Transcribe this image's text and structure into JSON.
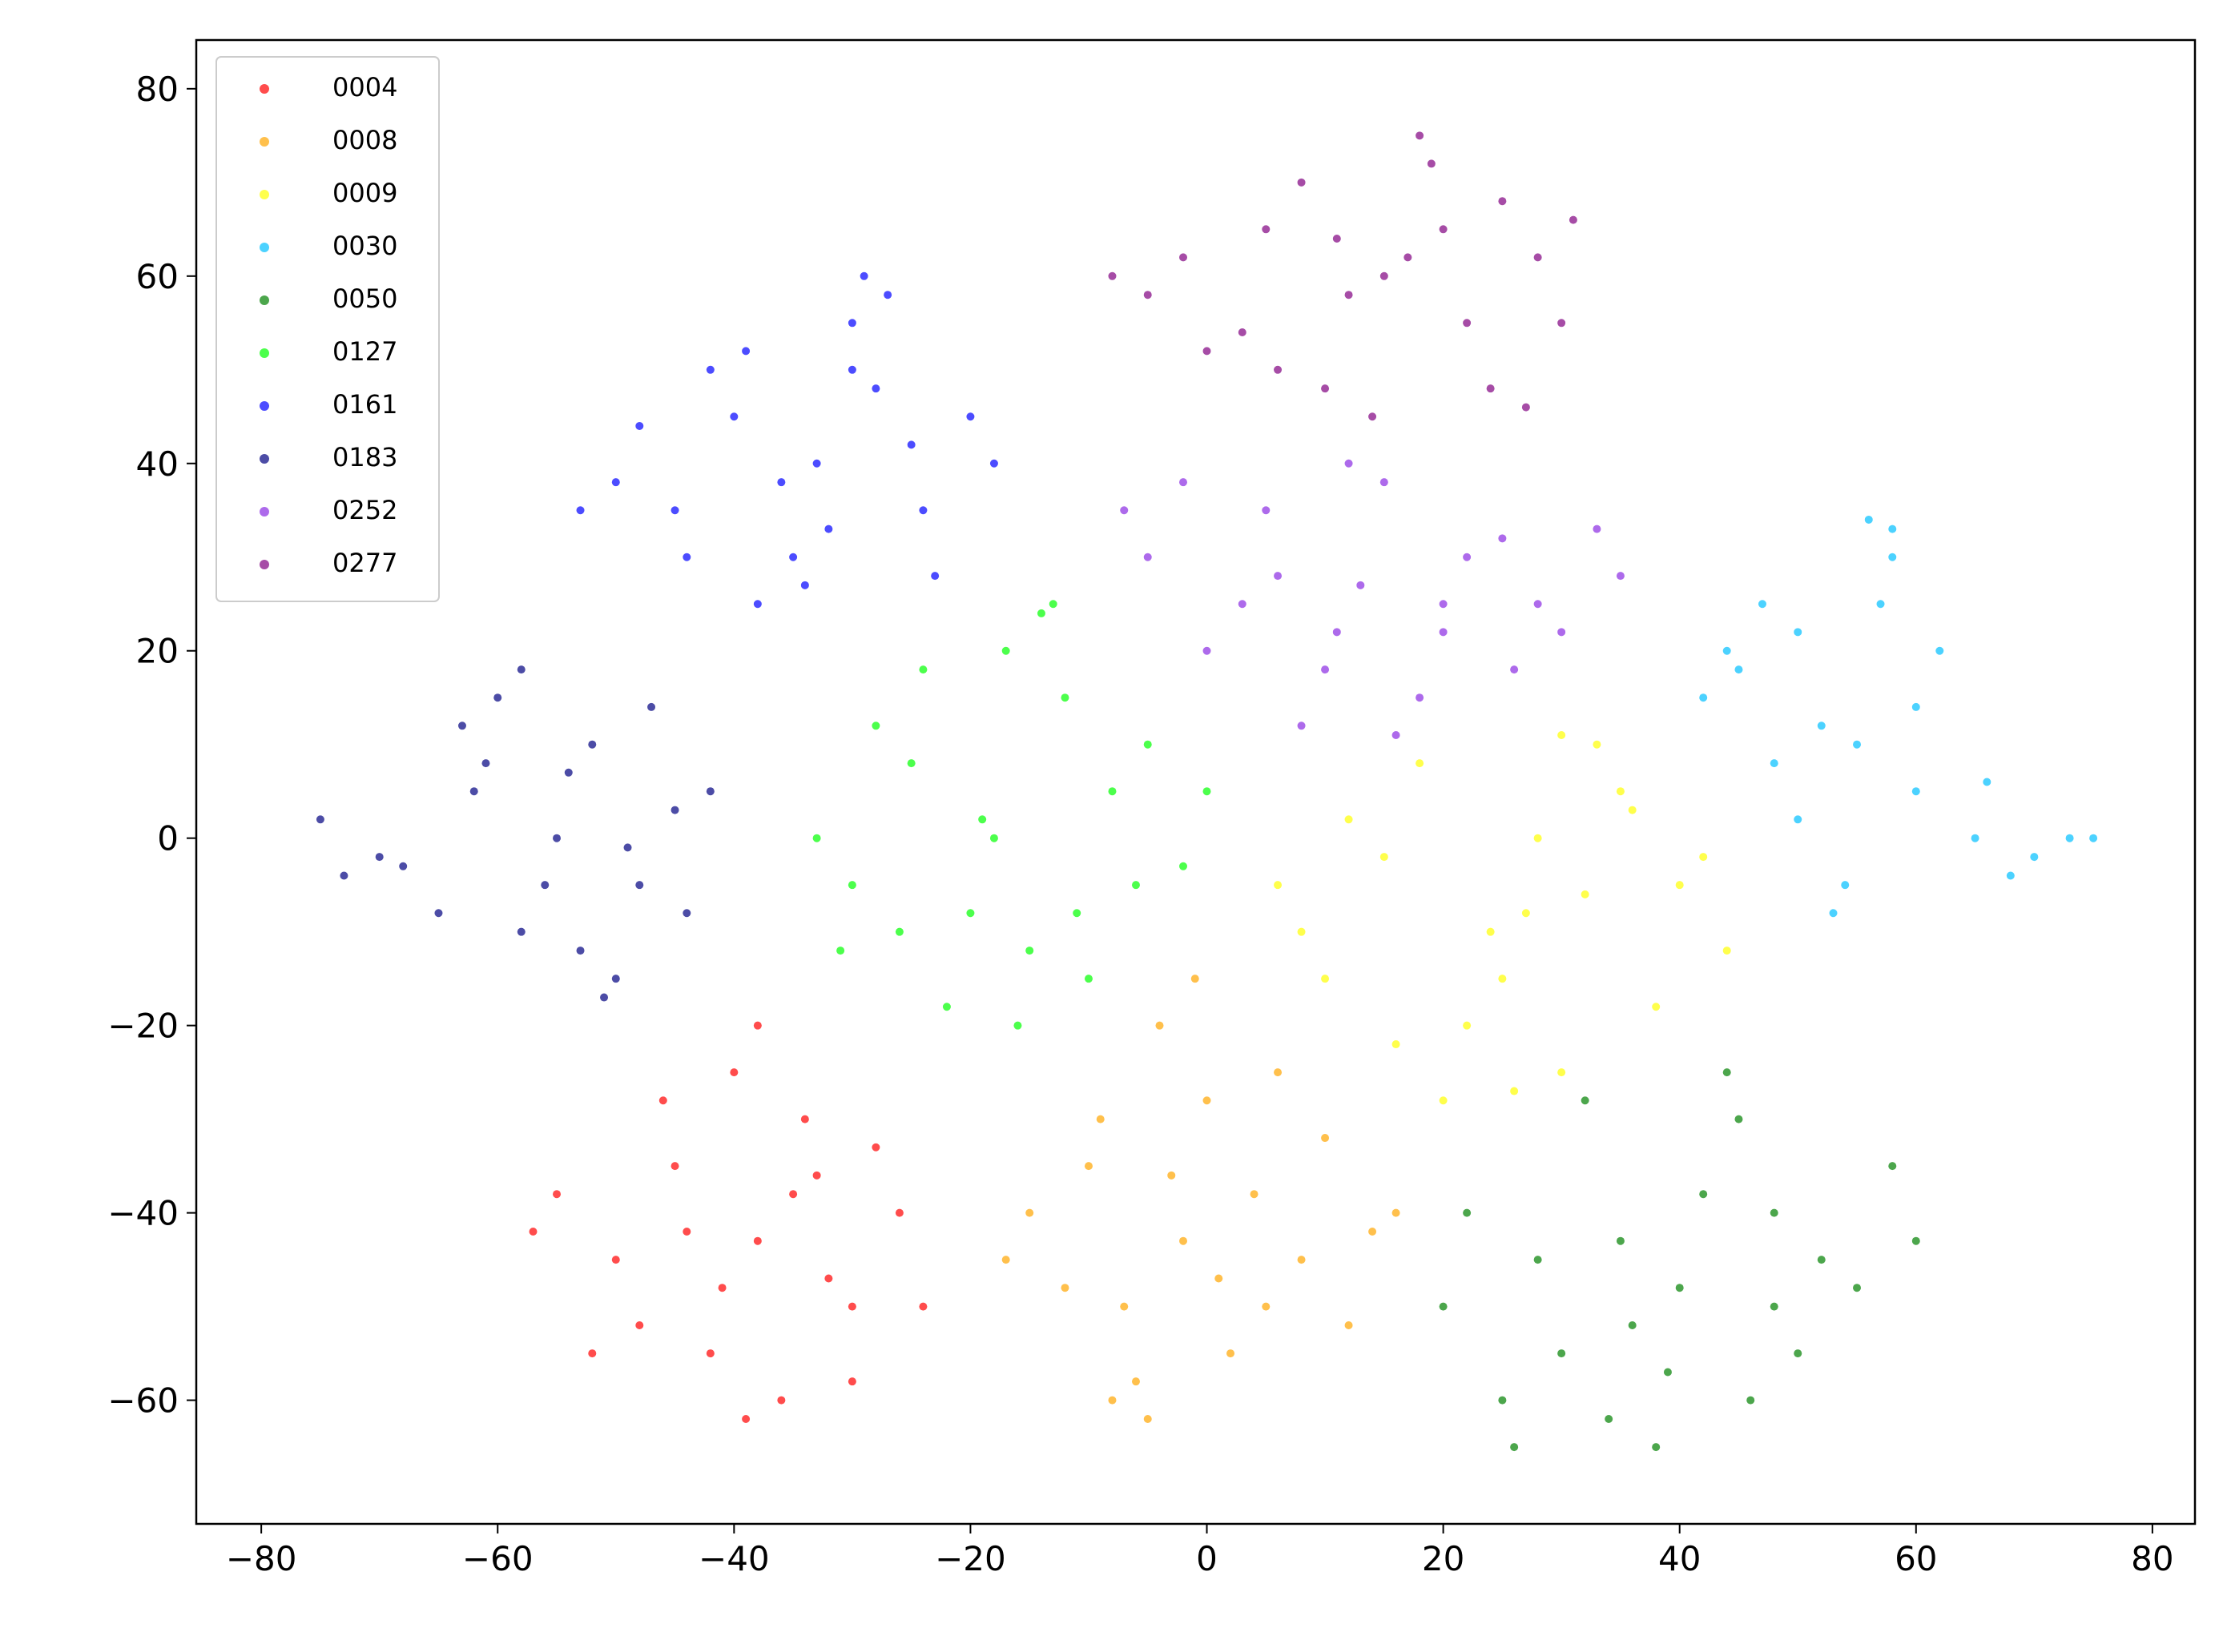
{
  "chart_data": {
    "type": "scatter",
    "xlim": [
      -85.5,
      83.6
    ],
    "ylim": [
      -73.2,
      85.2
    ],
    "xticks": [
      {
        "value": -80,
        "label": "−80"
      },
      {
        "value": -60,
        "label": "−60"
      },
      {
        "value": -40,
        "label": "−40"
      },
      {
        "value": -20,
        "label": "−20"
      },
      0,
      20,
      40,
      60,
      80
    ],
    "yticks": [
      {
        "value": -60,
        "label": "−60"
      },
      {
        "value": -40,
        "label": "−40"
      },
      {
        "value": -20,
        "label": "−20"
      },
      0,
      20,
      40,
      60,
      80
    ],
    "legend": "upper left",
    "alpha": 0.7,
    "series": [
      {
        "name": "0004",
        "color": "#ff0000",
        "x": [
          -38,
          -45,
          -30,
          -50,
          -42,
          -34,
          -26,
          -55,
          -40,
          -36,
          -48,
          -32,
          -44,
          -28,
          -52,
          -38,
          -24,
          -46,
          -35,
          -41,
          -30,
          -57,
          -39,
          -33
        ],
        "y": [
          -43,
          -35,
          -50,
          -45,
          -55,
          -30,
          -40,
          -38,
          -25,
          -60,
          -52,
          -47,
          -42,
          -33,
          -55,
          -20,
          -50,
          -28,
          -38,
          -48,
          -58,
          -42,
          -62,
          -36
        ]
      },
      {
        "name": "0008",
        "color": "#ffa500",
        "x": [
          -2,
          -10,
          5,
          -15,
          0,
          8,
          -6,
          14,
          -4,
          2,
          -12,
          10,
          -8,
          4,
          -17,
          12,
          -1,
          6,
          -7,
          -3,
          16,
          -9,
          1,
          -5
        ],
        "y": [
          -43,
          -35,
          -50,
          -40,
          -28,
          -45,
          -58,
          -42,
          -20,
          -55,
          -48,
          -32,
          -60,
          -38,
          -45,
          -52,
          -15,
          -25,
          -50,
          -36,
          -40,
          -30,
          -47,
          -62
        ]
      },
      {
        "name": "0009",
        "color": "#ffff00",
        "x": [
          27,
          15,
          35,
          8,
          22,
          40,
          30,
          18,
          25,
          44,
          12,
          33,
          20,
          28,
          38,
          6,
          24,
          36,
          16,
          30,
          42,
          10,
          26,
          32
        ],
        "y": [
          -8,
          -2,
          5,
          -10,
          -20,
          -5,
          -25,
          8,
          -15,
          -12,
          2,
          10,
          -28,
          0,
          -18,
          -5,
          -10,
          3,
          -22,
          11,
          -2,
          -15,
          -27,
          -6
        ]
      },
      {
        "name": "0030",
        "color": "#00bfff",
        "x": [
          55,
          45,
          60,
          50,
          70,
          58,
          42,
          65,
          52,
          56,
          48,
          73,
          62,
          54,
          44,
          68,
          57,
          50,
          75,
          60,
          53,
          66,
          47,
          58
        ],
        "y": [
          10,
          18,
          5,
          22,
          -2,
          30,
          15,
          0,
          12,
          34,
          8,
          0,
          20,
          -5,
          20,
          -4,
          25,
          2,
          0,
          14,
          -8,
          6,
          25,
          33
        ]
      },
      {
        "name": "0050",
        "color": "#008000",
        "x": [
          40,
          30,
          48,
          25,
          35,
          45,
          55,
          38,
          20,
          42,
          50,
          32,
          28,
          58,
          46,
          36,
          22,
          52,
          44,
          34,
          60,
          26,
          39,
          48
        ],
        "y": [
          -48,
          -55,
          -40,
          -60,
          -43,
          -30,
          -48,
          -65,
          -50,
          -38,
          -55,
          -28,
          -45,
          -35,
          -60,
          -52,
          -40,
          -45,
          -25,
          -62,
          -43,
          -65,
          -57,
          -50
        ]
      },
      {
        "name": "0127",
        "color": "#00ff00",
        "x": [
          -18,
          -25,
          -12,
          -30,
          -15,
          -8,
          -22,
          -2,
          -28,
          -17,
          -10,
          -33,
          -20,
          -5,
          -14,
          -26,
          -16,
          -24,
          -6,
          -19,
          -31,
          -11,
          -13,
          0
        ],
        "y": [
          0,
          8,
          15,
          -5,
          -12,
          5,
          -18,
          -3,
          12,
          20,
          -15,
          0,
          -8,
          10,
          24,
          -10,
          -20,
          18,
          -5,
          2,
          -12,
          -8,
          25,
          5
        ]
      },
      {
        "name": "0161",
        "color": "#0000ff",
        "x": [
          -33,
          -40,
          -28,
          -45,
          -35,
          -25,
          -50,
          -30,
          -38,
          -20,
          -42,
          -32,
          -27,
          -48,
          -36,
          -23,
          -44,
          -30,
          -18,
          -53,
          -34,
          -29,
          -39,
          -24
        ],
        "y": [
          40,
          45,
          48,
          35,
          30,
          42,
          38,
          55,
          25,
          45,
          50,
          33,
          58,
          44,
          38,
          28,
          30,
          50,
          40,
          35,
          27,
          60,
          52,
          35
        ]
      },
      {
        "name": "0183",
        "color": "#000080",
        "x": [
          -55,
          -62,
          -48,
          -70,
          -58,
          -52,
          -45,
          -65,
          -60,
          -50,
          -75,
          -56,
          -42,
          -63,
          -53,
          -47,
          -68,
          -58,
          -51,
          -44,
          -61,
          -73,
          -54,
          -49
        ],
        "y": [
          0,
          5,
          -5,
          -2,
          -10,
          10,
          3,
          -8,
          15,
          -15,
          2,
          -5,
          5,
          12,
          -12,
          14,
          -3,
          18,
          -17,
          -8,
          8,
          -4,
          7,
          -1
        ]
      },
      {
        "name": "0252",
        "color": "#8a2be2",
        "x": [
          13,
          5,
          20,
          -5,
          10,
          28,
          15,
          0,
          25,
          35,
          8,
          18,
          -7,
          30,
          12,
          22,
          3,
          33,
          16,
          6,
          26,
          -2,
          20,
          11
        ],
        "y": [
          27,
          35,
          22,
          30,
          18,
          25,
          38,
          20,
          32,
          28,
          12,
          15,
          35,
          22,
          40,
          30,
          25,
          33,
          11,
          28,
          18,
          38,
          25,
          22
        ]
      },
      {
        "name": "0277",
        "color": "#800080",
        "x": [
          15,
          5,
          22,
          -5,
          10,
          28,
          18,
          0,
          25,
          30,
          8,
          14,
          -8,
          20,
          12,
          24,
          3,
          31,
          17,
          6,
          27,
          -2,
          19,
          11
        ],
        "y": [
          60,
          65,
          55,
          58,
          48,
          62,
          75,
          52,
          68,
          55,
          70,
          45,
          60,
          65,
          58,
          48,
          54,
          66,
          62,
          50,
          46,
          62,
          72,
          64
        ]
      }
    ]
  }
}
